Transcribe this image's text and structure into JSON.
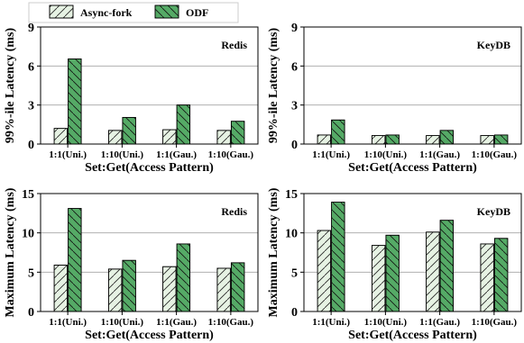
{
  "legend": [
    {
      "label": "Async-fork",
      "fill": "#e6f2e3",
      "hatch": "/"
    },
    {
      "label": "ODF",
      "fill": "#55aa66",
      "hatch": "\\"
    }
  ],
  "colors": {
    "async_fork": "#e6f2e3",
    "odf": "#55aa66",
    "edge": "#000000",
    "grid": "#b0b0b0"
  },
  "chart_data": [
    {
      "type": "bar",
      "panel_label": "Redis",
      "ylabel": "99%-ile Latency (ms)",
      "xlabel": "Set:Get(Access Pattern)",
      "categories": [
        "1:1(Uni.)",
        "1:10(Uni.)",
        "1:1(Gau.)",
        "1:10(Gau.)"
      ],
      "ylim": [
        0,
        9
      ],
      "yticks": [
        0,
        3,
        6,
        9
      ],
      "grid": true,
      "series": [
        {
          "name": "Async-fork",
          "values": [
            1.2,
            1.05,
            1.1,
            1.05
          ]
        },
        {
          "name": "ODF",
          "values": [
            6.55,
            2.05,
            3.0,
            1.75
          ]
        }
      ]
    },
    {
      "type": "bar",
      "panel_label": "KeyDB",
      "ylabel": "99%-ile Latency (ms)",
      "xlabel": "Set:Get(Access Pattern)",
      "categories": [
        "1:1(Uni.)",
        "1:10(Uni.)",
        "1:1(Gau.)",
        "1:10(Gau.)"
      ],
      "ylim": [
        0,
        9
      ],
      "yticks": [
        0,
        3,
        6,
        9
      ],
      "grid": true,
      "series": [
        {
          "name": "Async-fork",
          "values": [
            0.7,
            0.65,
            0.65,
            0.65
          ]
        },
        {
          "name": "ODF",
          "values": [
            1.85,
            0.7,
            1.05,
            0.7
          ]
        }
      ]
    },
    {
      "type": "bar",
      "panel_label": "Redis",
      "ylabel": "Maximum Latency (ms)",
      "xlabel": "Set:Get(Access Pattern)",
      "categories": [
        "1:1(Uni.)",
        "1:10(Uni.)",
        "1:1(Gau.)",
        "1:10(Gau.)"
      ],
      "ylim": [
        0,
        15
      ],
      "yticks": [
        0,
        5,
        10,
        15
      ],
      "grid": true,
      "series": [
        {
          "name": "Async-fork",
          "values": [
            5.9,
            5.4,
            5.7,
            5.5
          ]
        },
        {
          "name": "ODF",
          "values": [
            13.1,
            6.5,
            8.6,
            6.2
          ]
        }
      ]
    },
    {
      "type": "bar",
      "panel_label": "KeyDB",
      "ylabel": "Maximum Latency (ms)",
      "xlabel": "Set:Get(Access Pattern)",
      "categories": [
        "1:1(Uni.)",
        "1:10(Uni.)",
        "1:1(Gau.)",
        "1:10(Gau.)"
      ],
      "ylim": [
        0,
        15
      ],
      "yticks": [
        0,
        5,
        10,
        15
      ],
      "grid": true,
      "series": [
        {
          "name": "Async-fork",
          "values": [
            10.3,
            8.4,
            10.1,
            8.6
          ]
        },
        {
          "name": "ODF",
          "values": [
            13.9,
            9.7,
            11.6,
            9.3
          ]
        }
      ]
    }
  ]
}
